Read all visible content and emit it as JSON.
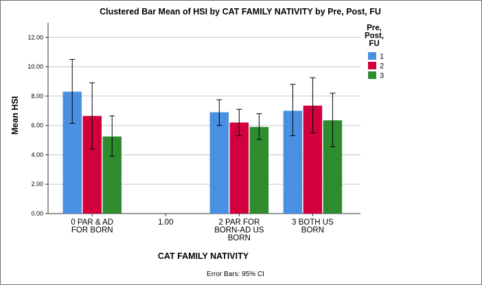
{
  "chart_data": {
    "type": "bar",
    "title": "Clustered Bar Mean of HSI by CAT FAMILY NATIVITY by Pre, Post, FU",
    "xlabel": "CAT FAMILY NATIVITY",
    "ylabel": "Mean HSI",
    "ylim": [
      0,
      13
    ],
    "yticks": [
      "0.00",
      "2.00",
      "4.00",
      "6.00",
      "8.00",
      "10.00",
      "12.00"
    ],
    "categories": [
      [
        "0 PAR & AD",
        "FOR BORN"
      ],
      [
        "1.00"
      ],
      [
        "2 PAR FOR",
        "BORN-AD US",
        "BORN"
      ],
      [
        "3 BOTH US",
        "BORN"
      ]
    ],
    "legend": {
      "title": [
        "Pre,",
        "Post,",
        "FU"
      ],
      "position": "top-right"
    },
    "series": [
      {
        "name": "1",
        "color": "#4a90e2",
        "values": [
          8.3,
          null,
          6.9,
          7.0
        ],
        "ci_low": [
          6.15,
          null,
          6.0,
          5.3
        ],
        "ci_high": [
          10.5,
          null,
          7.75,
          8.8
        ]
      },
      {
        "name": "2",
        "color": "#d2003c",
        "values": [
          6.65,
          null,
          6.2,
          7.35
        ],
        "ci_low": [
          4.4,
          null,
          5.3,
          5.5
        ],
        "ci_high": [
          8.9,
          null,
          7.1,
          9.25
        ]
      },
      {
        "name": "3",
        "color": "#2e8b2e",
        "values": [
          5.25,
          null,
          5.9,
          6.35
        ],
        "ci_low": [
          3.9,
          null,
          5.05,
          4.55
        ],
        "ci_high": [
          6.65,
          null,
          6.8,
          8.2
        ]
      }
    ],
    "grid": true,
    "footnote": "Error Bars: 95% CI"
  }
}
